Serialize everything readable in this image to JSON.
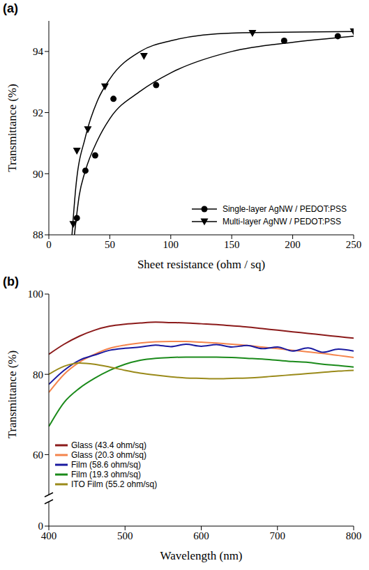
{
  "chart_data": [
    {
      "type": "scatter",
      "title": "(a)",
      "xlabel": "Sheet resistance (ohm / sq)",
      "ylabel": "Transmittance (%)",
      "xlim": [
        0,
        250
      ],
      "xticks": [
        0,
        50,
        100,
        150,
        200,
        250
      ],
      "ylim": [
        88,
        95
      ],
      "yticks": [
        88,
        90,
        92,
        94
      ],
      "legend": "lower right",
      "series": [
        {
          "name": "Single-layer AgNW / PEDOT:PSS",
          "color": "#000000",
          "marker": "circle",
          "x": [
            23,
            30,
            38,
            53,
            88,
            193,
            237
          ],
          "values": [
            88.55,
            90.1,
            90.6,
            92.45,
            92.9,
            94.35,
            94.5
          ],
          "fit_x": [
            21,
            25,
            30,
            40,
            50,
            75,
            100,
            150,
            200,
            250
          ],
          "fit_values": [
            88,
            89.3,
            90.1,
            91.1,
            91.8,
            92.7,
            93.3,
            94.0,
            94.3,
            94.5
          ]
        },
        {
          "name": "Multi-layer AgNW / PEDOT:PSS",
          "color": "#000000",
          "marker": "triangle_down",
          "x": [
            20,
            23,
            32,
            46,
            78,
            167,
            250
          ],
          "values": [
            88.35,
            90.75,
            91.45,
            92.85,
            93.85,
            94.6,
            94.65
          ],
          "fit_x": [
            19,
            22,
            30,
            40,
            50,
            75,
            100,
            150,
            250
          ],
          "fit_values": [
            88,
            89.5,
            91.2,
            92.4,
            93.1,
            94.0,
            94.35,
            94.6,
            94.65
          ]
        }
      ]
    },
    {
      "type": "line",
      "title": "(b)",
      "xlabel": "Wavelength (nm)",
      "ylabel": "Transmittance (%)",
      "xlim": [
        400,
        800
      ],
      "xticks": [
        400,
        500,
        600,
        700,
        800
      ],
      "ylim": [
        0,
        100
      ],
      "yticks": [
        0,
        60,
        80,
        100
      ],
      "ybreak": [
        10,
        50
      ],
      "legend": "lower left",
      "x": [
        400,
        420,
        440,
        460,
        480,
        500,
        520,
        540,
        560,
        580,
        600,
        620,
        640,
        660,
        680,
        700,
        720,
        740,
        760,
        780,
        800
      ],
      "series": [
        {
          "name": "Glass (43.4 ohm/sq)",
          "color": "#8b1a1a",
          "values": [
            85,
            87.5,
            89.5,
            91,
            92,
            92.5,
            92.8,
            93,
            92.9,
            92.8,
            92.6,
            92.4,
            92.1,
            91.8,
            91.4,
            91,
            90.6,
            90.2,
            89.8,
            89.4,
            89
          ]
        },
        {
          "name": "Glass (20.3 ohm/sq)",
          "color": "#f4844c",
          "values": [
            75.5,
            80,
            83,
            85,
            86.5,
            87.3,
            87.8,
            88.1,
            88.2,
            88.2,
            88,
            87.8,
            87.5,
            87.2,
            86.8,
            86.4,
            86,
            85.6,
            85.2,
            84.7,
            84.2
          ]
        },
        {
          "name": "Film (58.6 ohm/sq)",
          "color": "#1a1aa0",
          "values": [
            77.5,
            81,
            83.5,
            84.8,
            86,
            86.5,
            86.8,
            87.3,
            86.9,
            87.5,
            87,
            87.4,
            86.8,
            87.2,
            86.4,
            86.8,
            85.8,
            86.6,
            85.5,
            86.3,
            85.8
          ]
        },
        {
          "name": "Film (19.3 ohm/sq)",
          "color": "#1a8a1a",
          "values": [
            67,
            73,
            76.5,
            79,
            81,
            82.5,
            83.5,
            84,
            84.2,
            84.3,
            84.3,
            84.3,
            84.2,
            84,
            83.8,
            83.5,
            83.2,
            83,
            82.5,
            82.2,
            81.8
          ]
        },
        {
          "name": "ITO Film (55.2 ohm/sq)",
          "color": "#9a8a1a",
          "values": [
            80,
            82,
            82.8,
            82.5,
            81.8,
            81,
            80.3,
            79.8,
            79.4,
            79.1,
            79,
            78.9,
            79,
            79.1,
            79.3,
            79.6,
            79.9,
            80.2,
            80.5,
            80.8,
            81
          ]
        }
      ]
    }
  ]
}
